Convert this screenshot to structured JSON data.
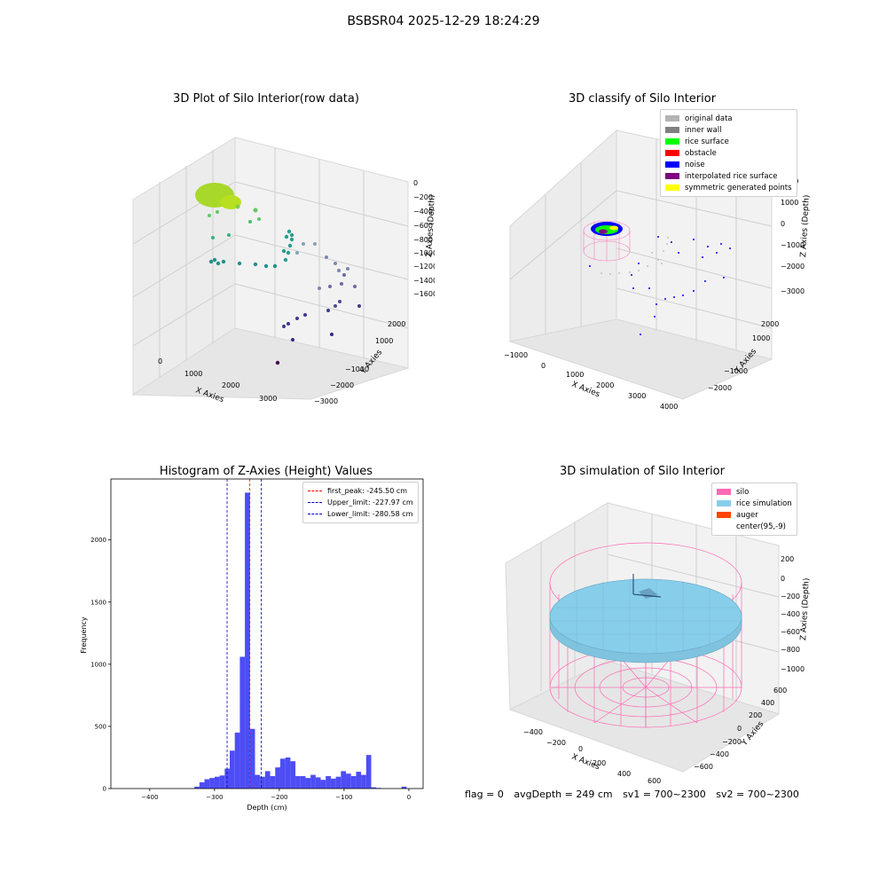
{
  "suptitle": "BSBSR04 2025-12-29 18:24:29",
  "colors": {
    "hist_bar": "#4d4df5",
    "peak_line": "#ff0000",
    "limit_line": "#0000cc",
    "silo_wire": "#ff69b4",
    "rice_fill": "#87ceeb"
  },
  "panels": {
    "raw": {
      "title": "3D Plot of Silo Interior(row data)",
      "xlabel": "X Axies",
      "ylabel": "Y Axies",
      "zlabel": "Z Axies (Depth)",
      "xticks": [
        "0",
        "1000",
        "2000",
        "3000"
      ],
      "yticks": [
        "2000",
        "1000",
        "−1000",
        "−2000",
        "−3000"
      ],
      "zticks": [
        "0",
        "−200",
        "−400",
        "−600",
        "−800",
        "−1000",
        "−1200",
        "−1400",
        "−1600"
      ]
    },
    "classify": {
      "title": "3D classify of Silo Interior",
      "xlabel": "X Axies",
      "ylabel": "Y Axies",
      "zlabel": "Z Axies (Depth)",
      "xticks": [
        "−1000",
        "0",
        "1000",
        "2000",
        "3000",
        "4000"
      ],
      "yticks": [
        "2000",
        "1000",
        "−1000",
        "−2000"
      ],
      "zticks": [
        "2000",
        "1000",
        "0",
        "−1000",
        "−2000",
        "−3000"
      ],
      "legend": [
        {
          "label": "original data",
          "color": "#b3b3b3"
        },
        {
          "label": "inner wall",
          "color": "#808080"
        },
        {
          "label": "rice surface",
          "color": "#00ff00"
        },
        {
          "label": "obstacle",
          "color": "#ff0000"
        },
        {
          "label": "noise",
          "color": "#0000ff"
        },
        {
          "label": "interpolated rice surface",
          "color": "#800080"
        },
        {
          "label": "symmetric generated points",
          "color": "#ffff00"
        }
      ]
    },
    "simulation": {
      "title": "3D simulation of Silo Interior",
      "xlabel": "X Axies",
      "ylabel": "Y Axies",
      "zlabel": "Z Axies (Depth)",
      "xticks": [
        "−400",
        "−200",
        "0",
        "200",
        "400",
        "600"
      ],
      "yticks": [
        "600",
        "400",
        "200",
        "0",
        "−200",
        "−400",
        "−600"
      ],
      "zticks": [
        "200",
        "0",
        "−200",
        "−400",
        "−600",
        "−800",
        "−1000"
      ],
      "legend": [
        {
          "label": "silo",
          "color": "#ff69b4"
        },
        {
          "label": "rice simulation",
          "color": "#87ceeb"
        },
        {
          "label": "auger",
          "color": "#ff4500"
        },
        {
          "label": "center(95,-9)",
          "color": ""
        }
      ]
    }
  },
  "chart_data": {
    "type": "bar",
    "title": "Histogram of Z-Axies (Height) Values",
    "xlabel": "Depth (cm)",
    "ylabel": "Frequency",
    "xlim": [
      -460,
      22
    ],
    "ylim": [
      0,
      2490
    ],
    "xticks": [
      -400,
      -300,
      -200,
      -100,
      0
    ],
    "yticks": [
      0,
      500,
      1000,
      1500,
      2000
    ],
    "bin_width": 7.8,
    "bins": [
      {
        "x": -331.1,
        "y": 15
      },
      {
        "x": -323.3,
        "y": 50
      },
      {
        "x": -315.5,
        "y": 75
      },
      {
        "x": -307.7,
        "y": 85
      },
      {
        "x": -299.9,
        "y": 95
      },
      {
        "x": -292.1,
        "y": 105
      },
      {
        "x": -284.3,
        "y": 160
      },
      {
        "x": -276.5,
        "y": 305
      },
      {
        "x": -268.7,
        "y": 450
      },
      {
        "x": -260.9,
        "y": 1060
      },
      {
        "x": -253.1,
        "y": 2380
      },
      {
        "x": -245.3,
        "y": 480
      },
      {
        "x": -237.5,
        "y": 110
      },
      {
        "x": -229.7,
        "y": 95
      },
      {
        "x": -221.9,
        "y": 140
      },
      {
        "x": -214.1,
        "y": 100
      },
      {
        "x": -206.3,
        "y": 170
      },
      {
        "x": -198.5,
        "y": 240
      },
      {
        "x": -190.7,
        "y": 250
      },
      {
        "x": -182.9,
        "y": 220
      },
      {
        "x": -175.1,
        "y": 100
      },
      {
        "x": -167.3,
        "y": 100
      },
      {
        "x": -159.5,
        "y": 85
      },
      {
        "x": -151.7,
        "y": 110
      },
      {
        "x": -143.9,
        "y": 90
      },
      {
        "x": -136.1,
        "y": 70
      },
      {
        "x": -128.3,
        "y": 100
      },
      {
        "x": -120.5,
        "y": 80
      },
      {
        "x": -112.7,
        "y": 95
      },
      {
        "x": -104.9,
        "y": 140
      },
      {
        "x": -97.1,
        "y": 120
      },
      {
        "x": -89.3,
        "y": 100
      },
      {
        "x": -81.5,
        "y": 135
      },
      {
        "x": -73.7,
        "y": 110
      },
      {
        "x": -65.9,
        "y": 270
      },
      {
        "x": -58.1,
        "y": 10
      },
      {
        "x": -50.3,
        "y": 5
      },
      {
        "x": -11.3,
        "y": 15
      }
    ],
    "lines": [
      {
        "label": "first_peak: -245.50 cm",
        "x": -245.5,
        "color": "#ff0000"
      },
      {
        "label": "Upper_limit: -227.97 cm",
        "x": -227.97,
        "color": "#0000cc"
      },
      {
        "label": "Lower_limit: -280.58 cm",
        "x": -280.58,
        "color": "#0000cc"
      }
    ],
    "legend_position": "top-right",
    "grid": false
  },
  "footer": {
    "flag": "flag = 0",
    "avg": "avgDepth = 249 cm",
    "sv1": "sv1 = 700~2300",
    "sv2": "sv2 = 700~2300"
  }
}
